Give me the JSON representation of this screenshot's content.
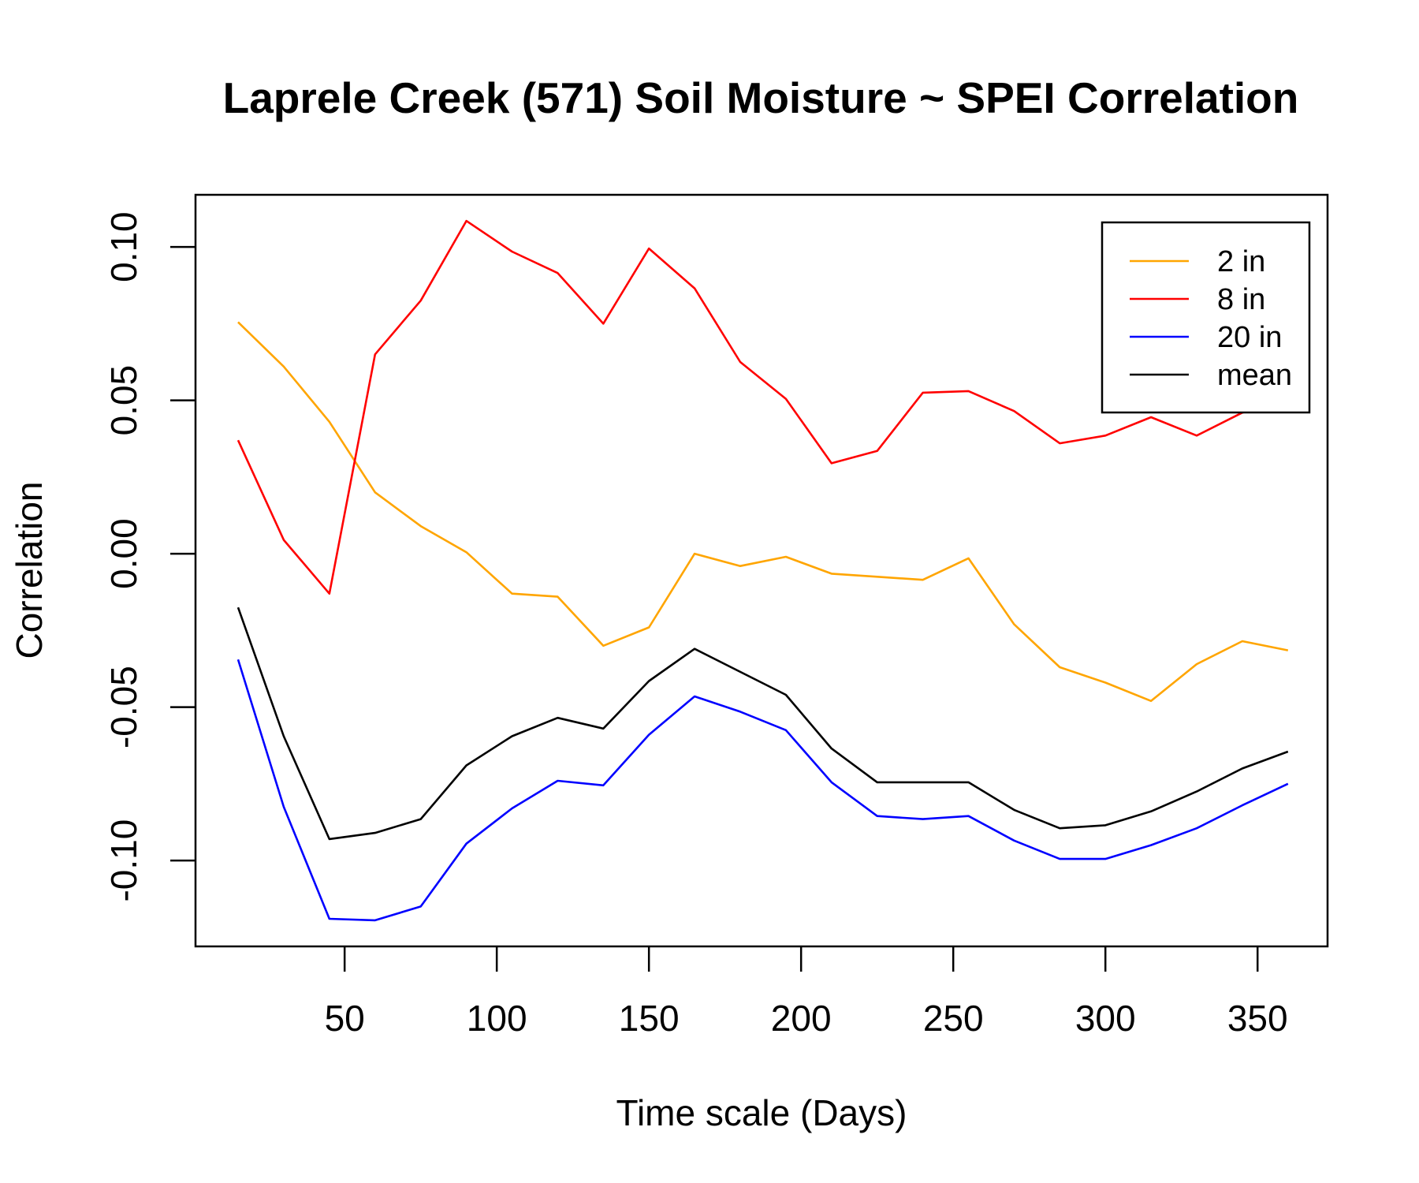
{
  "chart_data": {
    "type": "line",
    "title": "Laprele Creek (571) Soil Moisture ~ SPEI Correlation",
    "xlabel": "Time scale (Days)",
    "ylabel": "Correlation",
    "xlim": [
      1,
      373
    ],
    "ylim": [
      -0.128,
      0.117
    ],
    "x_ticks": [
      50,
      100,
      150,
      200,
      250,
      300,
      350
    ],
    "x_tick_labels": [
      "50",
      "100",
      "150",
      "200",
      "250",
      "300",
      "350"
    ],
    "y_ticks": [
      -0.1,
      -0.05,
      0.0,
      0.05,
      0.1
    ],
    "y_tick_labels": [
      "-0.10",
      "-0.05",
      "0.00",
      "0.05",
      "0.10"
    ],
    "legend_position": "top-right",
    "grid": false,
    "x": [
      15,
      30,
      45,
      60,
      75,
      90,
      105,
      120,
      135,
      150,
      165,
      180,
      195,
      210,
      225,
      240,
      255,
      270,
      285,
      300,
      315,
      330,
      345,
      360
    ],
    "series": [
      {
        "name": "2 in",
        "color": "#FFA500",
        "values": [
          0.0755,
          0.061,
          0.043,
          0.02,
          0.009,
          0.0005,
          -0.013,
          -0.014,
          -0.03,
          -0.024,
          0.0,
          -0.004,
          -0.001,
          -0.0065,
          -0.0075,
          -0.0085,
          -0.0015,
          -0.023,
          -0.037,
          -0.042,
          -0.048,
          -0.036,
          -0.0285,
          -0.0315
        ]
      },
      {
        "name": "8 in",
        "color": "#FF0000",
        "values": [
          0.037,
          0.0045,
          -0.013,
          0.065,
          0.0825,
          0.1085,
          0.0985,
          0.0915,
          0.075,
          0.0995,
          0.0865,
          0.0625,
          0.0505,
          0.0295,
          0.0335,
          0.0525,
          0.053,
          0.0465,
          0.036,
          0.0385,
          0.0445,
          0.0385,
          0.046,
          0.05
        ]
      },
      {
        "name": "20 in",
        "color": "#0000FF",
        "values": [
          -0.0345,
          -0.0825,
          -0.119,
          -0.1195,
          -0.115,
          -0.0945,
          -0.083,
          -0.074,
          -0.0755,
          -0.059,
          -0.0465,
          -0.0515,
          -0.0575,
          -0.0745,
          -0.0855,
          -0.0865,
          -0.0855,
          -0.0935,
          -0.0995,
          -0.0995,
          -0.095,
          -0.0895,
          -0.082,
          -0.075
        ]
      },
      {
        "name": "mean",
        "color": "#000000",
        "values": [
          -0.0175,
          -0.0595,
          -0.093,
          -0.091,
          -0.0865,
          -0.069,
          -0.0595,
          -0.0535,
          -0.057,
          -0.0415,
          -0.031,
          -0.0385,
          -0.046,
          -0.0635,
          -0.0745,
          -0.0745,
          -0.0745,
          -0.0835,
          -0.0895,
          -0.0885,
          -0.084,
          -0.0775,
          -0.07,
          -0.0645
        ]
      }
    ]
  }
}
